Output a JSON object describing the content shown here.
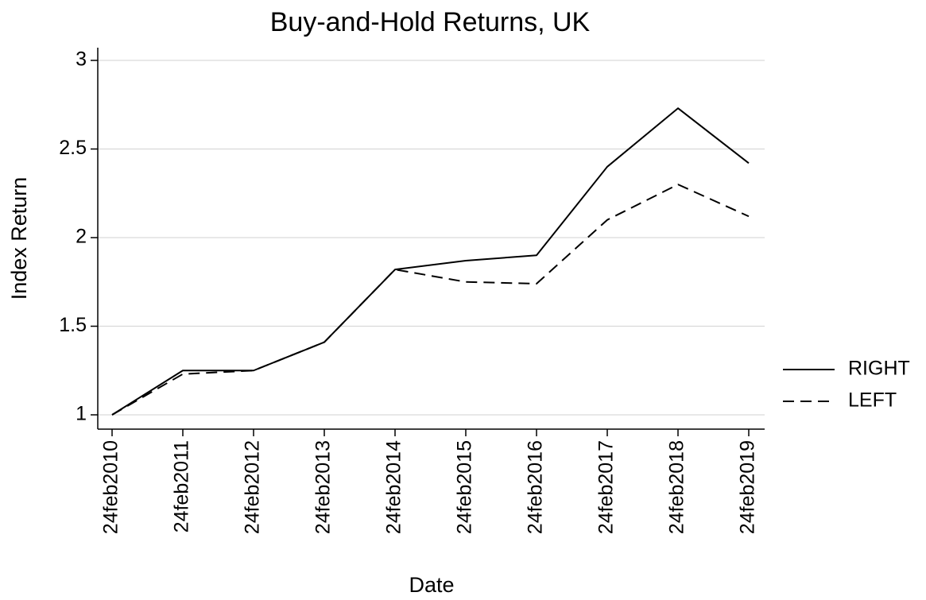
{
  "chart_data": {
    "type": "line",
    "title": "Buy-and-Hold Returns, UK",
    "x_label": "Date",
    "y_label": "Index Return",
    "categories": [
      "24feb2010",
      "24feb2011",
      "24feb2012",
      "24feb2013",
      "24feb2014",
      "24feb2015",
      "24feb2016",
      "24feb2017",
      "24feb2018",
      "24feb2019"
    ],
    "series": [
      {
        "name": "RIGHT",
        "color": "#000000",
        "dash": "solid",
        "values": [
          1,
          1.25,
          1.25,
          1.41,
          1.82,
          1.87,
          1.9,
          2.4,
          2.73,
          2.42
        ]
      },
      {
        "name": "LEFT",
        "color": "#000000",
        "dash": "dashed",
        "values": [
          1,
          1.23,
          1.25,
          1.41,
          1.82,
          1.75,
          1.74,
          2.1,
          2.3,
          2.12
        ]
      }
    ],
    "ylim": [
      1,
      3
    ],
    "yticks": [
      1,
      1.5,
      2,
      2.5,
      3
    ],
    "grid": true,
    "legend": "right"
  }
}
